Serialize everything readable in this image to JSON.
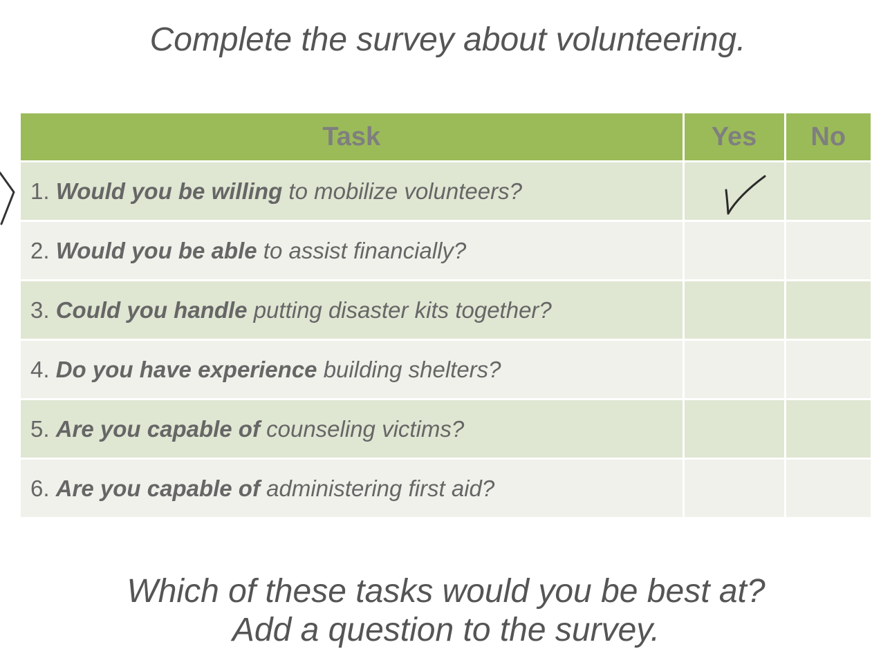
{
  "title": "Complete the survey about volunteering.",
  "table": {
    "headers": {
      "task": "Task",
      "yes": "Yes",
      "no": "No"
    },
    "rows": [
      {
        "num": "1.",
        "lead": "Would you be willing",
        "rest": " to mobilize volunteers?",
        "yes_checked": true,
        "no_checked": false
      },
      {
        "num": "2.",
        "lead": "Would you be able",
        "rest": " to assist financially?",
        "yes_checked": false,
        "no_checked": false
      },
      {
        "num": "3.",
        "lead": "Could you handle",
        "rest": " putting disaster kits together?",
        "yes_checked": false,
        "no_checked": false
      },
      {
        "num": "4.",
        "lead": "Do you have experience",
        "rest": " building shelters?",
        "yes_checked": false,
        "no_checked": false
      },
      {
        "num": "5.",
        "lead": "Are you capable of",
        "rest": " counseling victims?",
        "yes_checked": false,
        "no_checked": false
      },
      {
        "num": "6.",
        "lead": "Are you capable of",
        "rest": " administering first aid?",
        "yes_checked": false,
        "no_checked": false
      }
    ]
  },
  "bottom": {
    "line1": "Which of these tasks would you be best at?",
    "line2": "Add a question to the survey."
  },
  "icons": {
    "check": "checkmark-icon",
    "marker": "pointer-marker-icon"
  },
  "colors": {
    "header_bg": "#9bbb59",
    "row_odd": "#dfe6d2",
    "row_even": "#eff1ea",
    "text": "#666666"
  }
}
